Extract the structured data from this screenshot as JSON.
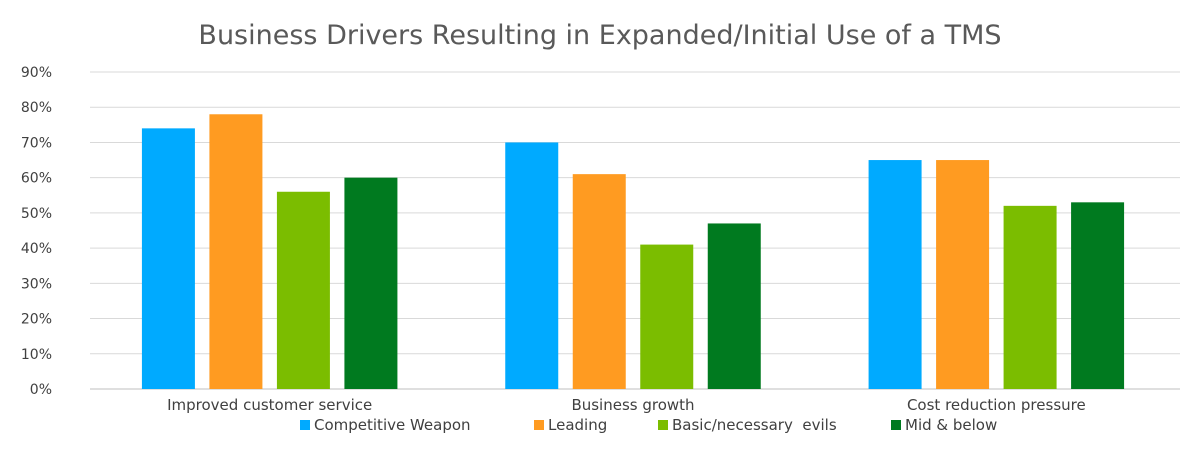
{
  "chart_data": {
    "type": "bar",
    "title": "Business Drivers Resulting in Expanded/Initial Use of a TMS",
    "categories": [
      "Improved customer service",
      "Business growth",
      "Cost reduction pressure"
    ],
    "series": [
      {
        "name": "Competitive Weapon",
        "color": "#00aaff",
        "values": [
          74,
          70,
          65
        ]
      },
      {
        "name": "Leading",
        "color": "#ff9b21",
        "values": [
          78,
          61,
          65
        ]
      },
      {
        "name": "Basic/necessary  evils",
        "color": "#7bbd00",
        "values": [
          56,
          41,
          52
        ]
      },
      {
        "name": "Mid & below",
        "color": "#007a1f",
        "values": [
          60,
          47,
          53
        ]
      }
    ],
    "ylim": [
      0,
      90
    ],
    "yticks": [
      "0%",
      "10%",
      "20%",
      "30%",
      "40%",
      "50%",
      "60%",
      "70%",
      "80%",
      "90%"
    ],
    "grid": true,
    "legend_position": "bottom"
  }
}
